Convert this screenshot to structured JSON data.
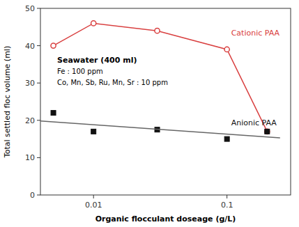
{
  "chart_data": {
    "type": "line",
    "xlabel": "Organic flocculant doseage  (g/L)",
    "ylabel": "Total settled floc volume (ml)",
    "annotations": [
      "Seawater (400 ml)",
      "Fe : 100 ppm",
      "Co, Mn, Sb, Ru, Mn, Sr : 10 ppm"
    ],
    "log": "x",
    "xlim": [
      0.004,
      0.3
    ],
    "ylim": [
      0,
      50
    ],
    "xticks": [
      0.01,
      0.1
    ],
    "yticks": [
      0,
      10,
      20,
      30,
      40,
      50
    ],
    "series": [
      {
        "name": "Cationic PAA",
        "color": "#d94040",
        "marker": "circle",
        "line_style": "solid",
        "x": [
          0.005,
          0.01,
          0.03,
          0.1,
          0.2
        ],
        "values": [
          40.0,
          46.0,
          44.0,
          39.0,
          17.0
        ]
      },
      {
        "name": "Anionic PAA",
        "color": "#111111",
        "marker": "square",
        "line_style": "none",
        "x": [
          0.005,
          0.01,
          0.03,
          0.1,
          0.2
        ],
        "values": [
          22.0,
          17.0,
          17.5,
          15.0,
          17.0
        ]
      },
      {
        "color": "#666666",
        "marker": "none",
        "line_style": "solid",
        "x": [
          0.004,
          0.25
        ],
        "values": [
          19.8,
          15.3
        ]
      }
    ]
  }
}
